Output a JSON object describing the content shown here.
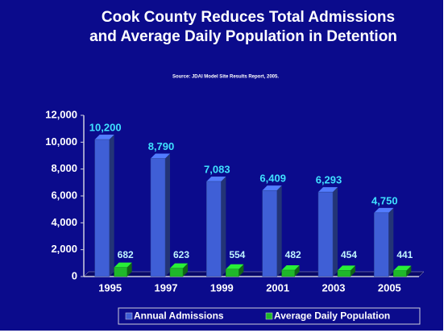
{
  "chart_data": {
    "type": "bar",
    "title": [
      "Cook County Reduces Total Admissions",
      "and Average Daily Population in Detention"
    ],
    "subtitle": "Source: JDAI Model Site Results Report, 2005.",
    "categories": [
      "1995",
      "1997",
      "1999",
      "2001",
      "2003",
      "2005"
    ],
    "series": [
      {
        "name": "Annual Admissions",
        "color": "#3f5fd6",
        "values": [
          10200,
          8790,
          7083,
          6409,
          6293,
          4750
        ],
        "value_labels": [
          "10,200",
          "8,790",
          "7,083",
          "6,409",
          "6,293",
          "4,750"
        ]
      },
      {
        "name": "Average Daily Population",
        "color": "#1fb82a",
        "values": [
          682,
          623,
          554,
          482,
          454,
          441
        ]
      }
    ],
    "ylim": [
      0,
      12000
    ],
    "yticks": [
      0,
      {
        "value": 2000,
        "label": "2,000"
      },
      {
        "value": 4000,
        "label": "4,000"
      },
      {
        "value": 6000,
        "label": "6,000"
      },
      {
        "value": 8000,
        "label": "8,000"
      },
      {
        "value": 10000,
        "label": "10,000"
      },
      {
        "value": 12000,
        "label": "12,000"
      }
    ],
    "legend": "bottom"
  }
}
